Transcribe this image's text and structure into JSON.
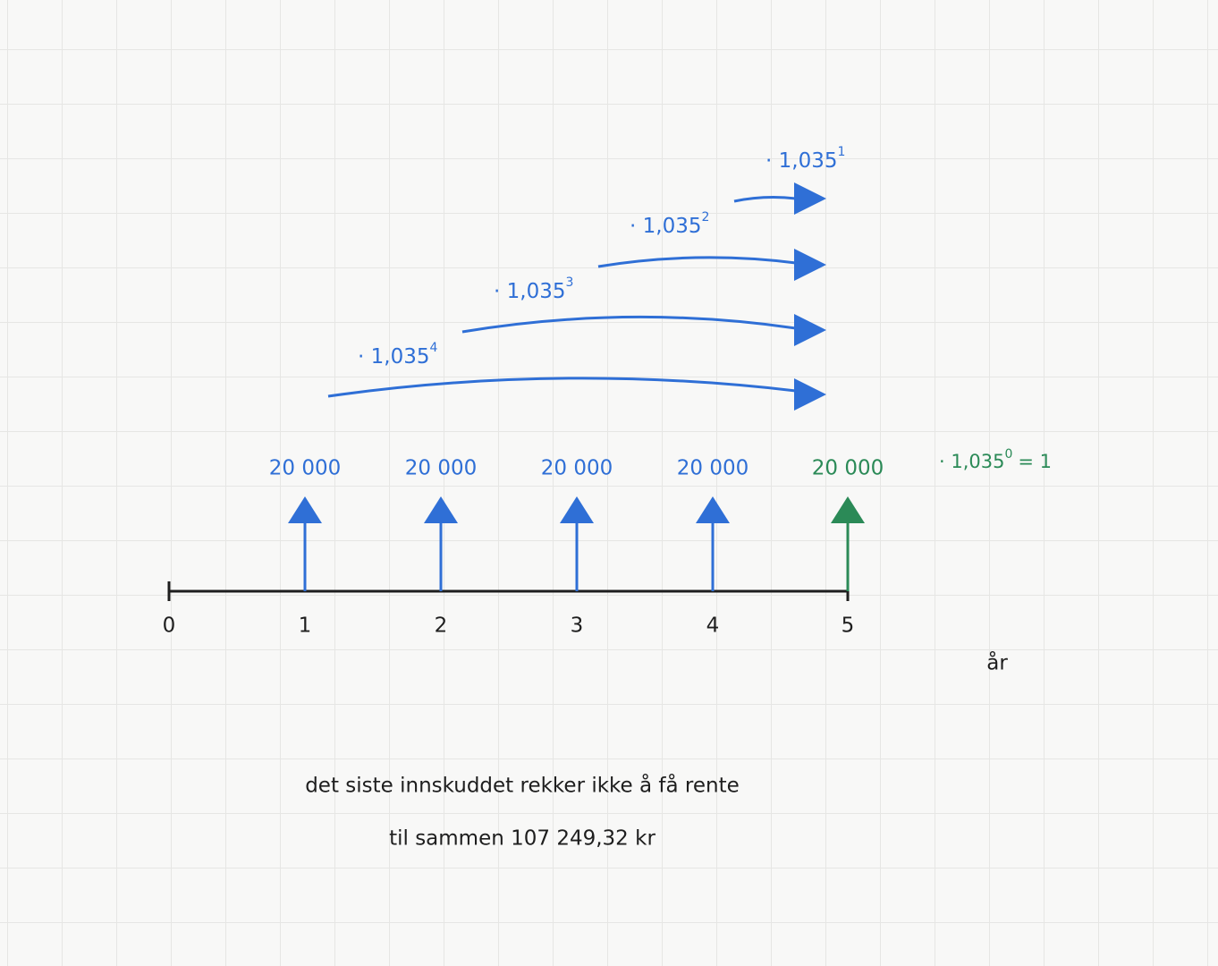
{
  "timeline": {
    "ticks": [
      "0",
      "1",
      "2",
      "3",
      "4",
      "5"
    ],
    "unit": "år"
  },
  "deposits": [
    {
      "amount": "20 000"
    },
    {
      "amount": "20 000"
    },
    {
      "amount": "20 000"
    },
    {
      "amount": "20 000"
    },
    {
      "amount": "20 000"
    }
  ],
  "factors": [
    {
      "base": "· 1,035",
      "exponent": "4"
    },
    {
      "base": "· 1,035",
      "exponent": "3"
    },
    {
      "base": "· 1,035",
      "exponent": "2"
    },
    {
      "base": "· 1,035",
      "exponent": "1"
    }
  ],
  "last_factor": {
    "base": "· 1,035",
    "exponent": "0",
    "result": "= 1"
  },
  "notes": [
    "det siste innskuddet rekker ikke å få rente",
    "til sammen 107 249,32 kr"
  ]
}
